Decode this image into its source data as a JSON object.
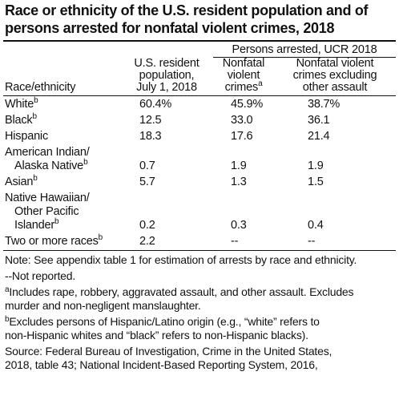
{
  "title": {
    "line1": "Race or ethnicity of the U.S. resident population and of",
    "line2": "persons arrested for nonfatal violent crimes, 2018"
  },
  "table": {
    "group_header": "Persons arrested, UCR 2018",
    "headers": {
      "race": "Race/ethnicity",
      "population": [
        "U.S. resident",
        "population,",
        "July 1, 2018"
      ],
      "nonfatal": [
        "Nonfatal",
        "violent",
        "crimes"
      ],
      "nonfatal_sup": "a",
      "excluding": [
        "Nonfatal violent",
        "crimes excluding",
        "other assault"
      ]
    },
    "rows": [
      {
        "label": [
          "White"
        ],
        "sup": "b",
        "pop": "60.4%",
        "nonfatal": "45.9%",
        "excl": "38.7%"
      },
      {
        "label": [
          "Black"
        ],
        "sup": "b",
        "pop": "12.5",
        "nonfatal": "33.0",
        "excl": "36.1"
      },
      {
        "label": [
          "Hispanic"
        ],
        "sup": "",
        "pop": "18.3",
        "nonfatal": "17.6",
        "excl": "21.4"
      },
      {
        "label": [
          "American Indian/",
          "Alaska Native"
        ],
        "sup": "b",
        "pop": "0.7",
        "nonfatal": "1.9",
        "excl": "1.9"
      },
      {
        "label": [
          "Asian"
        ],
        "sup": "b",
        "pop": "5.7",
        "nonfatal": "1.3",
        "excl": "1.5"
      },
      {
        "label": [
          "Native Hawaiian/",
          "Other Pacific",
          "Islander"
        ],
        "sup": "b",
        "pop": "0.2",
        "nonfatal": "0.3",
        "excl": "0.4"
      },
      {
        "label": [
          "Two or more races"
        ],
        "sup": "b",
        "pop": "2.2",
        "nonfatal": "--",
        "excl": "--"
      }
    ]
  },
  "notes": {
    "note": "Note: See appendix table 1 for estimation of arrests by race and ethnicity.",
    "not_reported": "--Not reported.",
    "footnote_a_mark": "a",
    "footnote_a": [
      "Includes rape, robbery, aggravated assault, and other assault. Excludes",
      "murder and non-negligent manslaughter."
    ],
    "footnote_b_mark": "b",
    "footnote_b": [
      "Excludes persons of Hispanic/Latino origin (e.g., “white” refers to",
      "non-Hispanic whites and “black” refers to non-Hispanic blacks)."
    ],
    "source": [
      "Source: Federal Bureau of Investigation, Crime in the United States,",
      "2018, table 43; National Incident-Based Reporting System, 2016,"
    ]
  }
}
